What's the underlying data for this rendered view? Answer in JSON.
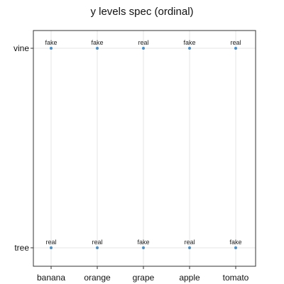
{
  "chart_data": {
    "type": "scatter",
    "title": "y levels spec (ordinal)",
    "xlabel": "",
    "ylabel": "",
    "grid": true,
    "x_categories": [
      "banana",
      "orange",
      "grape",
      "apple",
      "tomato"
    ],
    "y_levels": [
      "tree",
      "vine"
    ],
    "points": [
      {
        "x": "banana",
        "y": "vine",
        "label": "fake"
      },
      {
        "x": "orange",
        "y": "vine",
        "label": "fake"
      },
      {
        "x": "grape",
        "y": "vine",
        "label": "real"
      },
      {
        "x": "apple",
        "y": "vine",
        "label": "fake"
      },
      {
        "x": "tomato",
        "y": "vine",
        "label": "real"
      },
      {
        "x": "banana",
        "y": "tree",
        "label": "real"
      },
      {
        "x": "orange",
        "y": "tree",
        "label": "real"
      },
      {
        "x": "grape",
        "y": "tree",
        "label": "fake"
      },
      {
        "x": "apple",
        "y": "tree",
        "label": "real"
      },
      {
        "x": "tomato",
        "y": "tree",
        "label": "fake"
      }
    ],
    "point_color": "#4a90c8"
  }
}
